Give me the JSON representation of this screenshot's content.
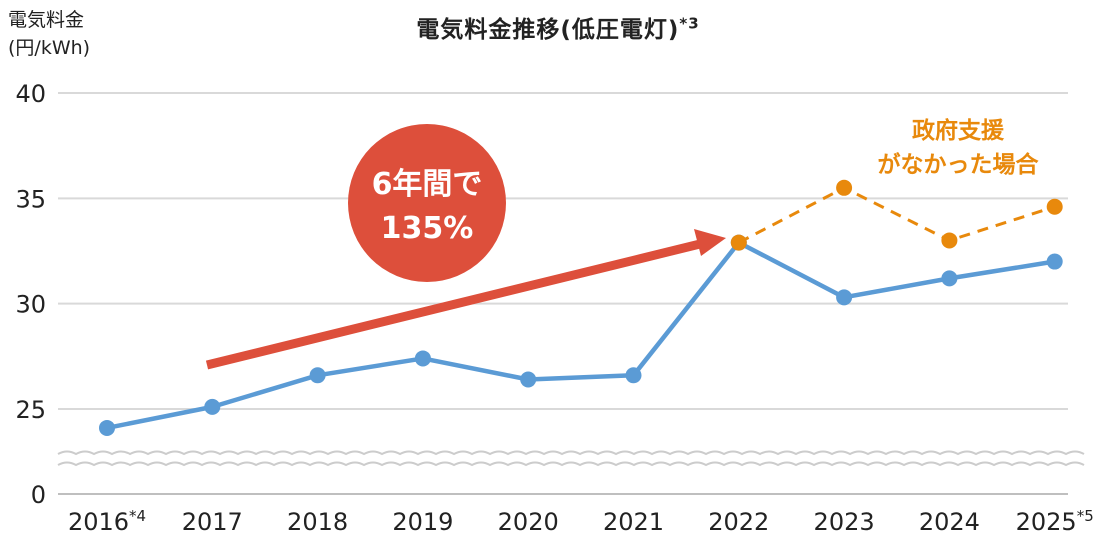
{
  "chart_data": {
    "type": "line",
    "title": "電気料金推移(低圧電灯)",
    "title_note": "*3",
    "ylabel_line1": "電気料金",
    "ylabel_line2": "(円/kWh)",
    "ylim": [
      0,
      40
    ],
    "y_axis_break": true,
    "yticks": [
      "40",
      "35",
      "30",
      "25",
      "0"
    ],
    "categories": [
      "2016",
      "2017",
      "2018",
      "2019",
      "2020",
      "2021",
      "2022",
      "2023",
      "2024",
      "2025"
    ],
    "category_notes": {
      "2016": "*4",
      "2025": "*5"
    },
    "series": [
      {
        "name": "",
        "color": "#5b9bd5",
        "style": "solid",
        "values": [
          24.1,
          25.1,
          26.6,
          27.4,
          26.4,
          26.6,
          32.9,
          30.3,
          31.2,
          32.0
        ]
      },
      {
        "name": "政府支援がなかった場合",
        "color": "#e8890c",
        "style": "dashed",
        "values": [
          null,
          null,
          null,
          null,
          null,
          null,
          32.9,
          35.5,
          33.0,
          34.6
        ]
      }
    ],
    "annotations": {
      "circle_line1": "6年間で",
      "circle_line2": "135%",
      "circle_color": "#dd4f3b",
      "arrow_color": "#dd4f3b",
      "dashed_label_line1": "政府支援",
      "dashed_label_line2": "がなかった場合",
      "dashed_label_color": "#e8890c"
    },
    "grid": true
  }
}
